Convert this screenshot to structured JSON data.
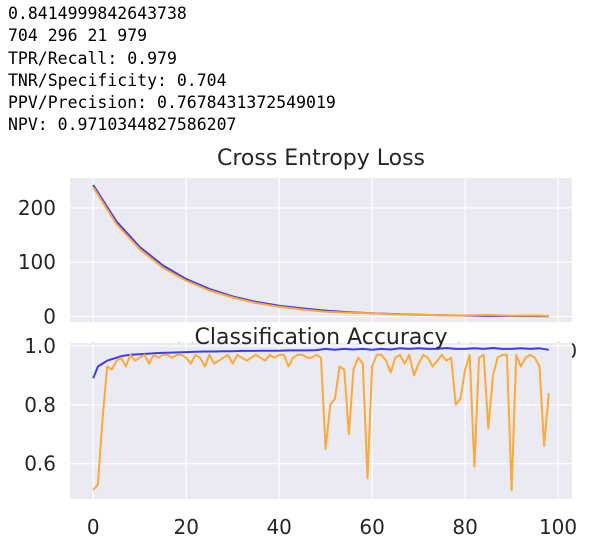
{
  "output_lines": [
    "0.8414999842643738",
    "704 296 21 979",
    "TPR/Recall: 0.979",
    "TNR/Specificity: 0.704",
    "PPV/Precision: 0.7678431372549019",
    "NPV: 0.9710344827586207"
  ],
  "chart_data": [
    {
      "type": "line",
      "title": "Cross Entropy Loss",
      "xlabel": "",
      "ylabel": "",
      "xlim": [
        -5,
        103
      ],
      "ylim": [
        -10,
        255
      ],
      "grid": true,
      "xticks": [
        0,
        20,
        40,
        60,
        80,
        100
      ],
      "yticks": [
        0,
        100,
        200
      ],
      "colors": [
        "#3b3bff",
        "#ffa834"
      ],
      "series": [
        {
          "x": [
            0,
            5,
            10,
            15,
            20,
            25,
            30,
            35,
            40,
            45,
            50,
            55,
            60,
            65,
            70,
            75,
            80,
            85,
            90,
            95,
            98
          ],
          "values": [
            242,
            175,
            128,
            94,
            69,
            51,
            37,
            27,
            20,
            15,
            11,
            8,
            6,
            4.5,
            3.3,
            2.4,
            1.8,
            1.3,
            1.0,
            0.8,
            0.7
          ]
        },
        {
          "x": [
            0,
            5,
            10,
            15,
            20,
            25,
            30,
            35,
            40,
            45,
            50,
            55,
            60,
            65,
            70,
            75,
            80,
            85,
            90,
            95,
            98
          ],
          "values": [
            238,
            170,
            124,
            90,
            66,
            48,
            35,
            25,
            18,
            13,
            9,
            7,
            6,
            4,
            3,
            2.5,
            2,
            3,
            1.5,
            2,
            1
          ]
        }
      ]
    },
    {
      "type": "line",
      "title": "Classification Accuracy",
      "xlabel": "",
      "ylabel": "",
      "xlim": [
        -5,
        103
      ],
      "ylim": [
        0.48,
        1.01
      ],
      "grid": true,
      "xticks": [
        0,
        20,
        40,
        60,
        80,
        100
      ],
      "yticks": [
        0.6,
        0.8,
        1.0
      ],
      "colors": [
        "#3b3bff",
        "#ffa834"
      ],
      "series": [
        {
          "x": [
            0,
            1,
            2,
            3,
            4,
            5,
            6,
            7,
            8,
            10,
            12,
            14,
            16,
            18,
            20,
            22,
            24,
            26,
            28,
            30,
            32,
            34,
            36,
            38,
            40,
            42,
            44,
            46,
            48,
            50,
            52,
            54,
            56,
            58,
            60,
            62,
            64,
            66,
            68,
            70,
            72,
            74,
            76,
            78,
            80,
            82,
            84,
            86,
            88,
            90,
            92,
            94,
            96,
            98
          ],
          "values": [
            0.89,
            0.93,
            0.94,
            0.95,
            0.955,
            0.96,
            0.965,
            0.968,
            0.97,
            0.972,
            0.974,
            0.976,
            0.977,
            0.978,
            0.979,
            0.98,
            0.981,
            0.981,
            0.982,
            0.982,
            0.983,
            0.983,
            0.984,
            0.984,
            0.984,
            0.985,
            0.985,
            0.985,
            0.986,
            0.99,
            0.987,
            0.99,
            0.988,
            0.99,
            0.987,
            0.99,
            0.988,
            0.992,
            0.99,
            0.992,
            0.99,
            0.99,
            0.993,
            0.99,
            0.99,
            0.992,
            0.99,
            0.993,
            0.99,
            0.99,
            0.992,
            0.99,
            0.992,
            0.987
          ]
        },
        {
          "x": [
            0,
            1,
            2,
            3,
            4,
            5,
            6,
            7,
            8,
            9,
            10,
            11,
            12,
            13,
            14,
            15,
            16,
            17,
            18,
            19,
            20,
            21,
            22,
            23,
            24,
            25,
            26,
            27,
            28,
            29,
            30,
            31,
            32,
            33,
            34,
            35,
            36,
            37,
            38,
            39,
            40,
            41,
            42,
            43,
            44,
            45,
            46,
            47,
            48,
            49,
            50,
            51,
            52,
            53,
            54,
            55,
            56,
            57,
            58,
            59,
            60,
            61,
            62,
            63,
            64,
            65,
            66,
            67,
            68,
            69,
            70,
            71,
            72,
            73,
            74,
            75,
            76,
            77,
            78,
            79,
            80,
            81,
            82,
            83,
            84,
            85,
            86,
            87,
            88,
            89,
            90,
            91,
            92,
            93,
            94,
            95,
            96,
            97,
            98
          ],
          "values": [
            0.51,
            0.53,
            0.75,
            0.93,
            0.92,
            0.95,
            0.96,
            0.93,
            0.97,
            0.95,
            0.96,
            0.97,
            0.94,
            0.97,
            0.96,
            0.97,
            0.97,
            0.96,
            0.97,
            0.97,
            0.96,
            0.94,
            0.97,
            0.96,
            0.93,
            0.97,
            0.94,
            0.95,
            0.96,
            0.97,
            0.94,
            0.97,
            0.96,
            0.95,
            0.96,
            0.97,
            0.96,
            0.95,
            0.97,
            0.96,
            0.97,
            0.97,
            0.93,
            0.96,
            0.97,
            0.97,
            0.96,
            0.96,
            0.97,
            0.96,
            0.65,
            0.8,
            0.82,
            0.93,
            0.92,
            0.7,
            0.92,
            0.96,
            0.94,
            0.55,
            0.93,
            0.97,
            0.97,
            0.95,
            0.91,
            0.96,
            0.97,
            0.94,
            0.97,
            0.9,
            0.94,
            0.97,
            0.96,
            0.93,
            0.95,
            0.97,
            0.95,
            0.96,
            0.8,
            0.82,
            0.92,
            0.97,
            0.59,
            0.96,
            0.97,
            0.72,
            0.9,
            0.96,
            0.97,
            0.97,
            0.51,
            0.97,
            0.93,
            0.96,
            0.97,
            0.96,
            0.93,
            0.66,
            0.84
          ]
        }
      ]
    }
  ]
}
